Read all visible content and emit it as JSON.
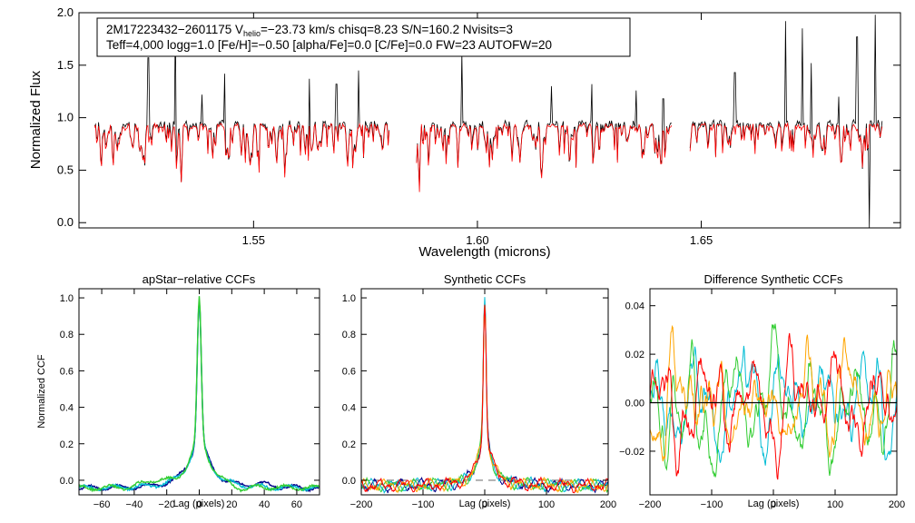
{
  "chart_data": [
    {
      "type": "line",
      "name": "spectrum",
      "xlabel": "Wavelength (microns)",
      "ylabel": "Normalized Flux",
      "xlim": [
        1.511,
        1.6945
      ],
      "ylim": [
        -0.05,
        2.0
      ],
      "xticks": [
        1.55,
        1.6,
        1.65
      ],
      "xtick_labels": [
        "1.55",
        "1.60",
        "1.65"
      ],
      "yticks": [
        0.0,
        0.5,
        1.0,
        1.5,
        2.0
      ],
      "ytick_labels": [
        "0.0",
        "0.5",
        "1.0",
        "1.5",
        "2.0"
      ],
      "segments": [
        [
          1.5145,
          1.5803
        ],
        [
          1.5864,
          1.6435
        ],
        [
          1.6475,
          1.6905
        ]
      ],
      "series": [
        {
          "name": "observed",
          "color": "#000000",
          "continuum": 0.95
        },
        {
          "name": "model",
          "color": "#ff0000",
          "continuum": 0.93
        }
      ],
      "emission_spikes": [
        {
          "x": 1.5265,
          "y": 1.57
        },
        {
          "x": 1.5325,
          "y": 1.95
        },
        {
          "x": 1.5385,
          "y": 1.22
        },
        {
          "x": 1.5435,
          "y": 1.42
        },
        {
          "x": 1.5625,
          "y": 1.37
        },
        {
          "x": 1.5685,
          "y": 1.32
        },
        {
          "x": 1.5735,
          "y": 1.45
        },
        {
          "x": 1.5965,
          "y": 1.62
        },
        {
          "x": 1.6165,
          "y": 1.3
        },
        {
          "x": 1.6255,
          "y": 1.32
        },
        {
          "x": 1.6355,
          "y": 1.26
        },
        {
          "x": 1.6415,
          "y": 1.18
        },
        {
          "x": 1.6575,
          "y": 1.43
        },
        {
          "x": 1.6688,
          "y": 1.92
        },
        {
          "x": 1.6725,
          "y": 1.85
        },
        {
          "x": 1.6745,
          "y": 1.52
        },
        {
          "x": 1.6808,
          "y": 1.2
        },
        {
          "x": 1.6848,
          "y": 1.77
        },
        {
          "x": 1.6888,
          "y": 1.98
        }
      ],
      "absorption_spikes": [
        {
          "x": 1.6875,
          "y": -0.05
        }
      ],
      "info_box": {
        "line1_prefix": "2M17223432−2601175  V",
        "line1_sub": "helio",
        "line1_suffix": "=−23.73 km/s  chisq=8.23  S/N=160.2  Nvisits=3",
        "line2": "Teff=4,000 logg=1.0 [Fe/H]=−0.50 [alpha/Fe]=0.0 [C/Fe]=0.0 FW=23 AUTOFW=20"
      }
    },
    {
      "type": "line",
      "name": "apstar-ccf",
      "title": "apStar−relative CCFs",
      "xlabel": "Lag (pixels)",
      "ylabel": "Normalized CCF",
      "xlim": [
        -74,
        74
      ],
      "ylim": [
        -0.08,
        1.05
      ],
      "xticks": [
        -60,
        -40,
        -20,
        0,
        20,
        40,
        60
      ],
      "xtick_labels": [
        "−60",
        "−40",
        "−20",
        "0",
        "20",
        "40",
        "60"
      ],
      "yticks": [
        0.0,
        0.2,
        0.4,
        0.6,
        0.8,
        1.0
      ],
      "ytick_labels": [
        "0.0",
        "0.2",
        "0.4",
        "0.6",
        "0.8",
        "1.0"
      ],
      "series": [
        {
          "name": "visit-1",
          "color": "#00008b",
          "peak": 0.99
        },
        {
          "name": "visit-2",
          "color": "#00bcd4",
          "peak": 0.98
        },
        {
          "name": "visit-3",
          "color": "#32cd32",
          "peak": 1.0
        }
      ]
    },
    {
      "type": "line",
      "name": "synthetic-ccf",
      "title": "Synthetic CCFs",
      "xlabel": "Lag (pixels)",
      "xlim": [
        -200,
        200
      ],
      "ylim": [
        -0.08,
        1.05
      ],
      "xticks": [
        -200,
        -100,
        0,
        100,
        200
      ],
      "xtick_labels": [
        "−200",
        "−100",
        "0",
        "100",
        "200"
      ],
      "yticks": [
        0.0,
        0.2,
        0.4,
        0.6,
        0.8,
        1.0
      ],
      "ytick_labels": [
        "0.0",
        "0.2",
        "0.4",
        "0.6",
        "0.8",
        "1.0"
      ],
      "baseline": 0.0,
      "series": [
        {
          "name": "visit-1",
          "color": "#00008b"
        },
        {
          "name": "visit-2",
          "color": "#00bcd4"
        },
        {
          "name": "visit-3",
          "color": "#32cd32"
        },
        {
          "name": "visit-4",
          "color": "#ffa500"
        },
        {
          "name": "visit-5",
          "color": "#ff0000"
        }
      ]
    },
    {
      "type": "line",
      "name": "difference-ccf",
      "title": "Difference Synthetic CCFs",
      "xlabel": "Lag (pixels)",
      "xlim": [
        -200,
        200
      ],
      "ylim": [
        -0.038,
        0.047
      ],
      "xticks": [
        -200,
        -100,
        0,
        100,
        200
      ],
      "xtick_labels": [
        "−200",
        "−100",
        "0",
        "100",
        "200"
      ],
      "yticks": [
        -0.02,
        0.0,
        0.02,
        0.04
      ],
      "ytick_labels": [
        "−0.02",
        "0.00",
        "0.02",
        "0.04"
      ],
      "zero_line": 0.0,
      "series": [
        {
          "name": "diff-1",
          "color": "#00bcd4"
        },
        {
          "name": "diff-2",
          "color": "#32cd32"
        },
        {
          "name": "diff-3",
          "color": "#ffa500"
        },
        {
          "name": "diff-4",
          "color": "#ff0000"
        }
      ]
    }
  ]
}
